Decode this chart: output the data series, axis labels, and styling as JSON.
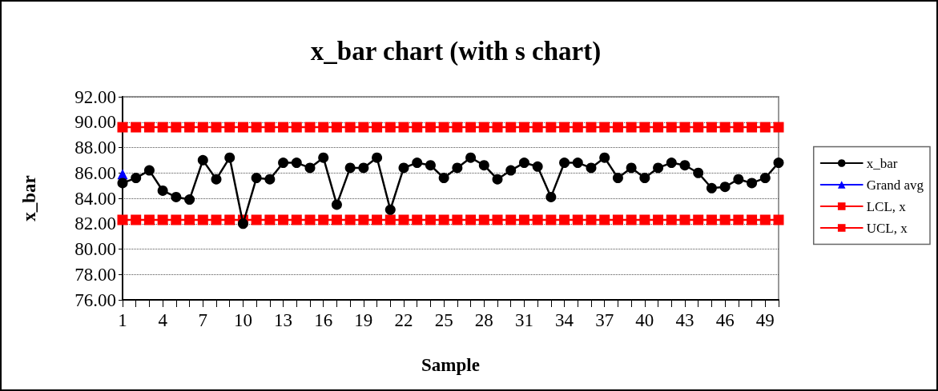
{
  "chart_data": {
    "type": "line",
    "title": "x_bar chart (with s chart)",
    "xlabel": "Sample",
    "ylabel": "x_bar",
    "categories": [
      "1",
      null,
      null,
      "4",
      null,
      null,
      "7",
      null,
      null,
      "10",
      null,
      null,
      "13",
      null,
      null,
      "16",
      null,
      null,
      "19",
      null,
      null,
      "22",
      null,
      null,
      "25",
      null,
      null,
      "28",
      null,
      null,
      "31",
      null,
      null,
      "34",
      null,
      null,
      "37",
      null,
      null,
      "40",
      null,
      null,
      "43",
      null,
      null,
      "46",
      null,
      null,
      "49",
      null
    ],
    "series": [
      {
        "name": "x_bar",
        "color": "#000000",
        "marker": "circle",
        "values": [
          85.2,
          85.6,
          86.2,
          84.6,
          84.1,
          83.9,
          87.0,
          85.5,
          87.2,
          82.0,
          85.6,
          85.5,
          86.8,
          86.8,
          86.4,
          87.2,
          83.5,
          86.4,
          86.4,
          87.2,
          83.1,
          86.4,
          86.8,
          86.6,
          85.6,
          86.4,
          87.2,
          86.6,
          85.5,
          86.2,
          86.8,
          86.5,
          84.1,
          86.8,
          86.8,
          86.4,
          87.2,
          85.6,
          86.4,
          85.6,
          86.4,
          86.8,
          86.6,
          86.0,
          84.8,
          84.9,
          85.5,
          85.2,
          85.6,
          86.8
        ]
      },
      {
        "name": "Grand avg",
        "color": "#0000ff",
        "marker": "triangle",
        "values": [
          85.9,
          null,
          null,
          null,
          null,
          null,
          null,
          null,
          null,
          null,
          null,
          null,
          null,
          null,
          null,
          null,
          null,
          null,
          null,
          null,
          null,
          null,
          null,
          null,
          null,
          null,
          null,
          null,
          null,
          null,
          null,
          null,
          null,
          null,
          null,
          null,
          null,
          null,
          null,
          null,
          null,
          null,
          null,
          null,
          null,
          null,
          null,
          null,
          null,
          null
        ]
      },
      {
        "name": "LCL, x",
        "color": "#ff0000",
        "marker": "square",
        "values": [
          82.3,
          82.3,
          82.3,
          82.3,
          82.3,
          82.3,
          82.3,
          82.3,
          82.3,
          82.3,
          82.3,
          82.3,
          82.3,
          82.3,
          82.3,
          82.3,
          82.3,
          82.3,
          82.3,
          82.3,
          82.3,
          82.3,
          82.3,
          82.3,
          82.3,
          82.3,
          82.3,
          82.3,
          82.3,
          82.3,
          82.3,
          82.3,
          82.3,
          82.3,
          82.3,
          82.3,
          82.3,
          82.3,
          82.3,
          82.3,
          82.3,
          82.3,
          82.3,
          82.3,
          82.3,
          82.3,
          82.3,
          82.3,
          82.3,
          82.3
        ]
      },
      {
        "name": "UCL, x",
        "color": "#ff0000",
        "marker": "square",
        "values": [
          89.6,
          89.6,
          89.6,
          89.6,
          89.6,
          89.6,
          89.6,
          89.6,
          89.6,
          89.6,
          89.6,
          89.6,
          89.6,
          89.6,
          89.6,
          89.6,
          89.6,
          89.6,
          89.6,
          89.6,
          89.6,
          89.6,
          89.6,
          89.6,
          89.6,
          89.6,
          89.6,
          89.6,
          89.6,
          89.6,
          89.6,
          89.6,
          89.6,
          89.6,
          89.6,
          89.6,
          89.6,
          89.6,
          89.6,
          89.6,
          89.6,
          89.6,
          89.6,
          89.6,
          89.6,
          89.6,
          89.6,
          89.6,
          89.6,
          89.6
        ]
      }
    ],
    "ylim": [
      76,
      92
    ],
    "yticks": [
      {
        "value": 76,
        "label": "76.00"
      },
      {
        "value": 78,
        "label": "78.00"
      },
      {
        "value": 80,
        "label": "80.00"
      },
      {
        "value": 82,
        "label": "82.00"
      },
      {
        "value": 84,
        "label": "84.00"
      },
      {
        "value": 86,
        "label": "86.00"
      },
      {
        "value": 88,
        "label": "88.00"
      },
      {
        "value": 90,
        "label": "90.00"
      },
      {
        "value": 92,
        "label": "92.00"
      }
    ],
    "grid": "y",
    "legend": "right"
  }
}
